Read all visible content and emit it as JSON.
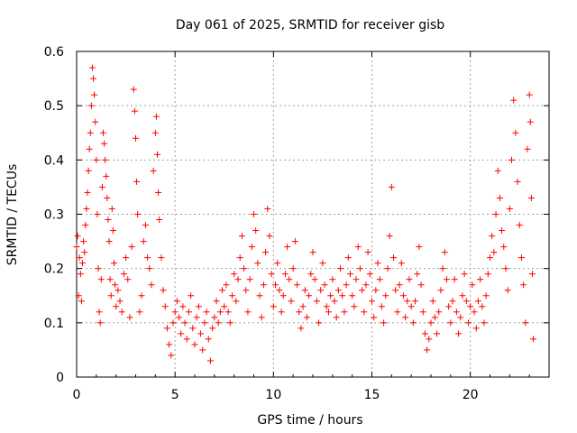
{
  "chart_data": {
    "type": "scatter",
    "title": "Day 061 of 2025, SRMTID for receiver gisb",
    "xlabel": "GPS time / hours",
    "ylabel": "SRMTID / TECUs",
    "xlim": [
      0,
      24
    ],
    "ylim": [
      0,
      0.6
    ],
    "xticks": [
      0,
      5,
      10,
      15,
      20
    ],
    "xtick_labels": [
      "0",
      "5",
      "10",
      "15",
      "20"
    ],
    "yticks": [
      0,
      0.1,
      0.2,
      0.3,
      0.4,
      0.5,
      0.6
    ],
    "ytick_labels": [
      "0",
      "0.1",
      "0.2",
      "0.3",
      "0.4",
      "0.5",
      "0.6"
    ],
    "grid": true,
    "marker": "+",
    "series": [
      {
        "name": "SRMTID",
        "color": "#ff0000",
        "points": [
          [
            0.0,
            0.24
          ],
          [
            0.05,
            0.26
          ],
          [
            0.1,
            0.15
          ],
          [
            0.15,
            0.22
          ],
          [
            0.2,
            0.19
          ],
          [
            0.25,
            0.14
          ],
          [
            0.3,
            0.21
          ],
          [
            0.35,
            0.25
          ],
          [
            0.4,
            0.23
          ],
          [
            0.45,
            0.28
          ],
          [
            0.5,
            0.31
          ],
          [
            0.55,
            0.34
          ],
          [
            0.6,
            0.38
          ],
          [
            0.65,
            0.42
          ],
          [
            0.7,
            0.45
          ],
          [
            0.75,
            0.5
          ],
          [
            0.8,
            0.57
          ],
          [
            0.85,
            0.55
          ],
          [
            0.9,
            0.52
          ],
          [
            0.95,
            0.47
          ],
          [
            1.0,
            0.4
          ],
          [
            1.05,
            0.3
          ],
          [
            1.1,
            0.2
          ],
          [
            1.15,
            0.12
          ],
          [
            1.2,
            0.1
          ],
          [
            1.25,
            0.18
          ],
          [
            1.3,
            0.35
          ],
          [
            1.35,
            0.45
          ],
          [
            1.4,
            0.43
          ],
          [
            1.45,
            0.4
          ],
          [
            1.5,
            0.37
          ],
          [
            1.55,
            0.33
          ],
          [
            1.6,
            0.29
          ],
          [
            1.65,
            0.25
          ],
          [
            1.7,
            0.18
          ],
          [
            1.75,
            0.15
          ],
          [
            1.8,
            0.31
          ],
          [
            1.85,
            0.27
          ],
          [
            1.9,
            0.21
          ],
          [
            1.95,
            0.17
          ],
          [
            2.0,
            0.13
          ],
          [
            2.1,
            0.16
          ],
          [
            2.2,
            0.14
          ],
          [
            2.3,
            0.12
          ],
          [
            2.4,
            0.19
          ],
          [
            2.5,
            0.22
          ],
          [
            2.6,
            0.18
          ],
          [
            2.7,
            0.11
          ],
          [
            2.8,
            0.24
          ],
          [
            2.9,
            0.53
          ],
          [
            2.95,
            0.49
          ],
          [
            3.0,
            0.44
          ],
          [
            3.05,
            0.36
          ],
          [
            3.1,
            0.3
          ],
          [
            3.2,
            0.12
          ],
          [
            3.3,
            0.15
          ],
          [
            3.4,
            0.25
          ],
          [
            3.5,
            0.28
          ],
          [
            3.6,
            0.22
          ],
          [
            3.7,
            0.2
          ],
          [
            3.8,
            0.17
          ],
          [
            3.9,
            0.38
          ],
          [
            4.0,
            0.45
          ],
          [
            4.05,
            0.48
          ],
          [
            4.1,
            0.41
          ],
          [
            4.15,
            0.34
          ],
          [
            4.2,
            0.29
          ],
          [
            4.3,
            0.22
          ],
          [
            4.4,
            0.16
          ],
          [
            4.5,
            0.13
          ],
          [
            4.6,
            0.09
          ],
          [
            4.7,
            0.06
          ],
          [
            4.8,
            0.04
          ],
          [
            4.9,
            0.1
          ],
          [
            5.0,
            0.12
          ],
          [
            5.1,
            0.14
          ],
          [
            5.2,
            0.11
          ],
          [
            5.3,
            0.08
          ],
          [
            5.4,
            0.13
          ],
          [
            5.5,
            0.1
          ],
          [
            5.6,
            0.07
          ],
          [
            5.7,
            0.12
          ],
          [
            5.8,
            0.15
          ],
          [
            5.9,
            0.09
          ],
          [
            6.0,
            0.06
          ],
          [
            6.1,
            0.11
          ],
          [
            6.2,
            0.13
          ],
          [
            6.3,
            0.08
          ],
          [
            6.4,
            0.05
          ],
          [
            6.5,
            0.1
          ],
          [
            6.6,
            0.12
          ],
          [
            6.7,
            0.07
          ],
          [
            6.8,
            0.03
          ],
          [
            6.9,
            0.09
          ],
          [
            7.0,
            0.11
          ],
          [
            7.1,
            0.14
          ],
          [
            7.2,
            0.1
          ],
          [
            7.3,
            0.12
          ],
          [
            7.4,
            0.16
          ],
          [
            7.5,
            0.13
          ],
          [
            7.6,
            0.17
          ],
          [
            7.7,
            0.12
          ],
          [
            7.8,
            0.1
          ],
          [
            7.9,
            0.15
          ],
          [
            8.0,
            0.19
          ],
          [
            8.1,
            0.14
          ],
          [
            8.2,
            0.18
          ],
          [
            8.3,
            0.22
          ],
          [
            8.4,
            0.26
          ],
          [
            8.5,
            0.2
          ],
          [
            8.6,
            0.16
          ],
          [
            8.7,
            0.12
          ],
          [
            8.8,
            0.18
          ],
          [
            8.9,
            0.24
          ],
          [
            9.0,
            0.3
          ],
          [
            9.1,
            0.27
          ],
          [
            9.2,
            0.21
          ],
          [
            9.3,
            0.15
          ],
          [
            9.4,
            0.11
          ],
          [
            9.5,
            0.17
          ],
          [
            9.6,
            0.23
          ],
          [
            9.7,
            0.31
          ],
          [
            9.8,
            0.26
          ],
          [
            9.9,
            0.19
          ],
          [
            10.0,
            0.13
          ],
          [
            10.1,
            0.17
          ],
          [
            10.2,
            0.21
          ],
          [
            10.3,
            0.16
          ],
          [
            10.4,
            0.12
          ],
          [
            10.5,
            0.15
          ],
          [
            10.6,
            0.19
          ],
          [
            10.7,
            0.24
          ],
          [
            10.8,
            0.18
          ],
          [
            10.9,
            0.14
          ],
          [
            11.0,
            0.2
          ],
          [
            11.1,
            0.25
          ],
          [
            11.2,
            0.17
          ],
          [
            11.3,
            0.12
          ],
          [
            11.4,
            0.09
          ],
          [
            11.5,
            0.13
          ],
          [
            11.6,
            0.16
          ],
          [
            11.7,
            0.11
          ],
          [
            11.8,
            0.15
          ],
          [
            11.9,
            0.19
          ],
          [
            12.0,
            0.23
          ],
          [
            12.1,
            0.18
          ],
          [
            12.2,
            0.14
          ],
          [
            12.3,
            0.1
          ],
          [
            12.4,
            0.16
          ],
          [
            12.5,
            0.21
          ],
          [
            12.6,
            0.17
          ],
          [
            12.7,
            0.13
          ],
          [
            12.8,
            0.12
          ],
          [
            12.9,
            0.15
          ],
          [
            13.0,
            0.18
          ],
          [
            13.1,
            0.14
          ],
          [
            13.2,
            0.11
          ],
          [
            13.3,
            0.16
          ],
          [
            13.4,
            0.2
          ],
          [
            13.5,
            0.15
          ],
          [
            13.6,
            0.12
          ],
          [
            13.7,
            0.17
          ],
          [
            13.8,
            0.22
          ],
          [
            13.9,
            0.19
          ],
          [
            14.0,
            0.15
          ],
          [
            14.1,
            0.13
          ],
          [
            14.2,
            0.18
          ],
          [
            14.3,
            0.24
          ],
          [
            14.4,
            0.2
          ],
          [
            14.5,
            0.16
          ],
          [
            14.6,
            0.12
          ],
          [
            14.7,
            0.17
          ],
          [
            14.8,
            0.23
          ],
          [
            14.9,
            0.19
          ],
          [
            15.0,
            0.14
          ],
          [
            15.1,
            0.11
          ],
          [
            15.2,
            0.16
          ],
          [
            15.3,
            0.21
          ],
          [
            15.4,
            0.18
          ],
          [
            15.5,
            0.13
          ],
          [
            15.6,
            0.1
          ],
          [
            15.7,
            0.15
          ],
          [
            15.8,
            0.2
          ],
          [
            15.9,
            0.26
          ],
          [
            16.0,
            0.35
          ],
          [
            16.1,
            0.22
          ],
          [
            16.2,
            0.16
          ],
          [
            16.3,
            0.12
          ],
          [
            16.4,
            0.17
          ],
          [
            16.5,
            0.21
          ],
          [
            16.6,
            0.15
          ],
          [
            16.7,
            0.11
          ],
          [
            16.8,
            0.14
          ],
          [
            16.9,
            0.18
          ],
          [
            17.0,
            0.13
          ],
          [
            17.1,
            0.1
          ],
          [
            17.2,
            0.14
          ],
          [
            17.3,
            0.19
          ],
          [
            17.4,
            0.24
          ],
          [
            17.5,
            0.17
          ],
          [
            17.6,
            0.12
          ],
          [
            17.7,
            0.08
          ],
          [
            17.8,
            0.05
          ],
          [
            17.9,
            0.07
          ],
          [
            18.0,
            0.1
          ],
          [
            18.1,
            0.14
          ],
          [
            18.2,
            0.11
          ],
          [
            18.3,
            0.08
          ],
          [
            18.4,
            0.12
          ],
          [
            18.5,
            0.16
          ],
          [
            18.6,
            0.2
          ],
          [
            18.7,
            0.23
          ],
          [
            18.8,
            0.18
          ],
          [
            18.9,
            0.13
          ],
          [
            19.0,
            0.1
          ],
          [
            19.1,
            0.14
          ],
          [
            19.2,
            0.18
          ],
          [
            19.3,
            0.12
          ],
          [
            19.4,
            0.08
          ],
          [
            19.5,
            0.11
          ],
          [
            19.6,
            0.15
          ],
          [
            19.7,
            0.19
          ],
          [
            19.8,
            0.14
          ],
          [
            19.9,
            0.1
          ],
          [
            20.0,
            0.13
          ],
          [
            20.1,
            0.17
          ],
          [
            20.2,
            0.12
          ],
          [
            20.3,
            0.09
          ],
          [
            20.4,
            0.14
          ],
          [
            20.5,
            0.18
          ],
          [
            20.6,
            0.13
          ],
          [
            20.7,
            0.1
          ],
          [
            20.8,
            0.15
          ],
          [
            20.9,
            0.19
          ],
          [
            21.0,
            0.22
          ],
          [
            21.1,
            0.26
          ],
          [
            21.2,
            0.23
          ],
          [
            21.3,
            0.3
          ],
          [
            21.4,
            0.38
          ],
          [
            21.5,
            0.33
          ],
          [
            21.6,
            0.27
          ],
          [
            21.7,
            0.24
          ],
          [
            21.8,
            0.2
          ],
          [
            21.9,
            0.16
          ],
          [
            22.0,
            0.31
          ],
          [
            22.1,
            0.4
          ],
          [
            22.2,
            0.51
          ],
          [
            22.3,
            0.45
          ],
          [
            22.4,
            0.36
          ],
          [
            22.5,
            0.28
          ],
          [
            22.6,
            0.22
          ],
          [
            22.7,
            0.17
          ],
          [
            22.8,
            0.1
          ],
          [
            22.9,
            0.42
          ],
          [
            23.0,
            0.52
          ],
          [
            23.05,
            0.47
          ],
          [
            23.1,
            0.33
          ],
          [
            23.15,
            0.19
          ],
          [
            23.2,
            0.07
          ]
        ]
      }
    ]
  }
}
